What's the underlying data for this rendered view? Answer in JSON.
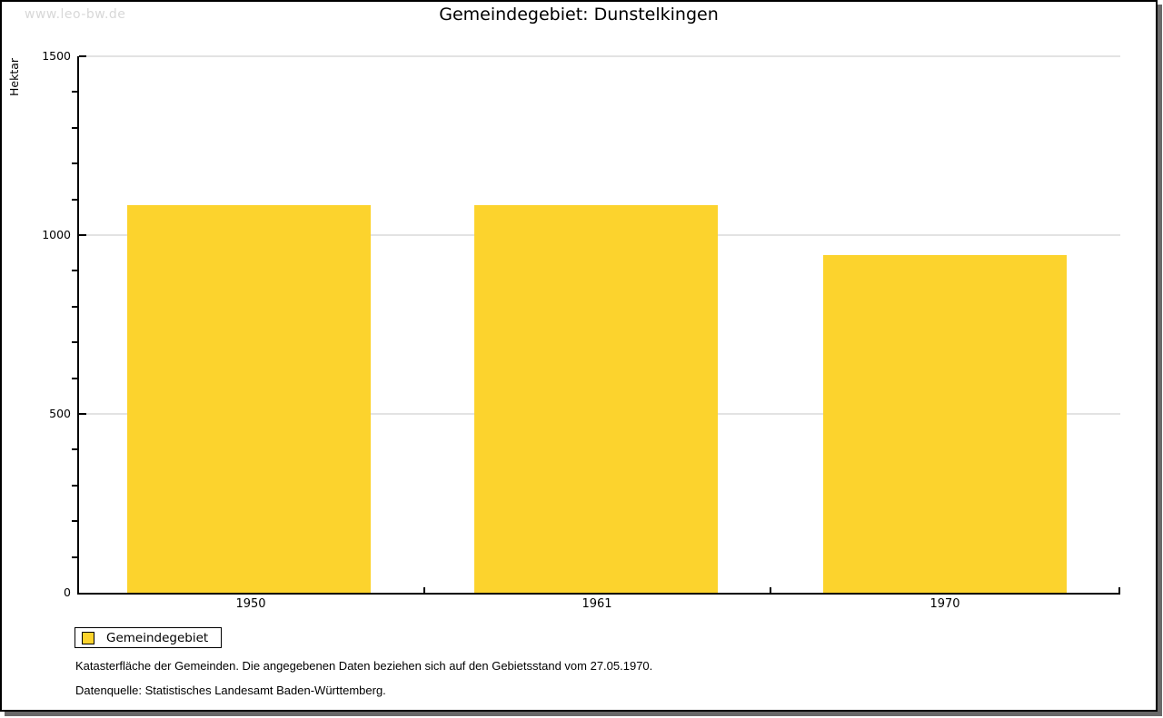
{
  "watermark": "www.leo-bw.de",
  "header": {
    "title": "Gemeindegebiet: Dunstelkingen"
  },
  "chart_data": {
    "type": "bar",
    "title": "Gemeindegebiet: Dunstelkingen",
    "categories": [
      "1950",
      "1961",
      "1970"
    ],
    "series": [
      {
        "name": "Gemeindegebiet",
        "values": [
          1083,
          1083,
          945
        ]
      }
    ],
    "xlabel": "",
    "ylabel": "Hektar",
    "ylim": [
      0,
      1500
    ],
    "yticks": [
      1500,
      1000,
      500,
      0
    ],
    "minor_tick_step": 100,
    "grid": "horizontal major gridlines only",
    "legend_position": "below plot, bottom-left",
    "bar_color": "#fcd32d"
  },
  "legend": {
    "label": "Gemeindegebiet"
  },
  "footnotes": [
    "Katasterfläche der Gemeinden. Die angegebenen Daten beziehen sich auf den Gebietsstand vom 27.05.1970.",
    "Datenquelle: Statistisches Landesamt Baden-Württemberg."
  ],
  "colors": {
    "bar": "#fcd32d",
    "gridline": "#e3e3e3",
    "watermark": "#d8d8d8",
    "frame_shadow": "#696969"
  }
}
